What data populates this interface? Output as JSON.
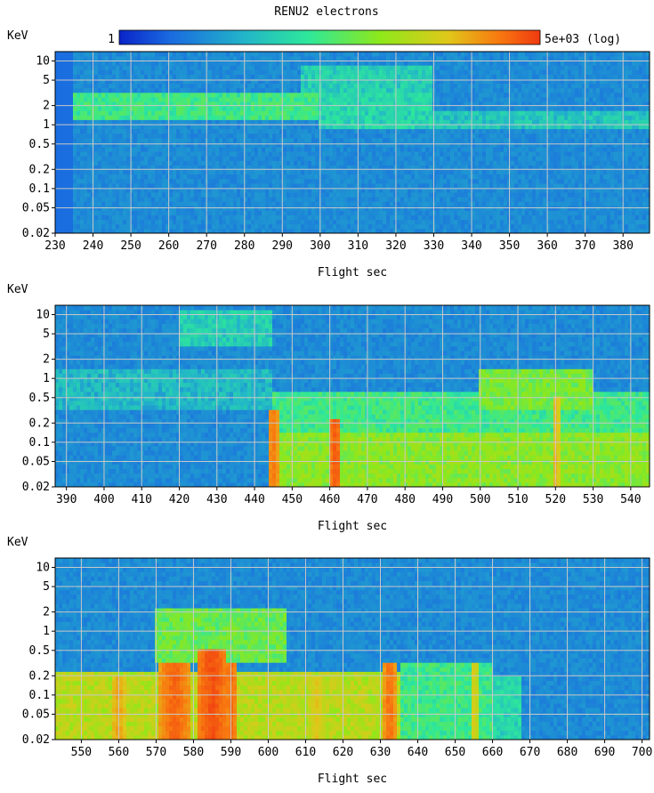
{
  "title": "RENU2 electrons",
  "colorbar": {
    "min_label": "1",
    "max_label": "5e+03 (log)",
    "min": 1,
    "max": 5000,
    "scale": "log",
    "colormap": "jet"
  },
  "chart_data": [
    {
      "type": "heatmap",
      "title": "RENU2 electrons",
      "xlabel": "Flight sec",
      "ylabel": "KeV",
      "xlim": [
        230,
        387
      ],
      "ylim": [
        0.02,
        14
      ],
      "yscale": "log",
      "grid": true,
      "x_ticks": [
        230,
        240,
        250,
        260,
        270,
        280,
        290,
        300,
        310,
        320,
        330,
        340,
        350,
        360,
        370,
        380
      ],
      "y_ticks": [
        0.02,
        0.05,
        0.1,
        0.2,
        0.5,
        1,
        2,
        5,
        10
      ],
      "y_tick_labels": [
        "0.02",
        "0.05",
        "0.1",
        "0.2",
        "0.5",
        "1",
        "2",
        "5",
        "10"
      ],
      "data_start": 235,
      "bands": [
        {
          "x": [
            235,
            300
          ],
          "e": [
            1.2,
            3
          ],
          "value": 60
        },
        {
          "x": [
            300,
            330
          ],
          "e": [
            0.9,
            3
          ],
          "value": 30
        },
        {
          "x": [
            330,
            387
          ],
          "e": [
            0.8,
            1.6
          ],
          "value": 20
        },
        {
          "x": [
            295,
            330
          ],
          "e": [
            2,
            8
          ],
          "value": 25
        }
      ],
      "spikes": []
    },
    {
      "type": "heatmap",
      "title": "",
      "xlabel": "Flight sec",
      "ylabel": "KeV",
      "xlim": [
        387,
        545
      ],
      "ylim": [
        0.02,
        14
      ],
      "yscale": "log",
      "grid": true,
      "x_ticks": [
        390,
        400,
        410,
        420,
        430,
        440,
        450,
        460,
        470,
        480,
        490,
        500,
        510,
        520,
        530,
        540
      ],
      "y_ticks": [
        0.02,
        0.05,
        0.1,
        0.2,
        0.5,
        1,
        2,
        5,
        10
      ],
      "y_tick_labels": [
        "0.02",
        "0.05",
        "0.1",
        "0.2",
        "0.5",
        "1",
        "2",
        "5",
        "10"
      ],
      "data_start": 387,
      "bands": [
        {
          "x": [
            387,
            445
          ],
          "e": [
            0.3,
            1.5
          ],
          "value": 15
        },
        {
          "x": [
            420,
            445
          ],
          "e": [
            3,
            12
          ],
          "value": 25
        },
        {
          "x": [
            445,
            545
          ],
          "e": [
            0.02,
            0.15
          ],
          "value": 200
        },
        {
          "x": [
            445,
            545
          ],
          "e": [
            0.15,
            0.6
          ],
          "value": 60
        },
        {
          "x": [
            500,
            530
          ],
          "e": [
            0.3,
            1.5
          ],
          "value": 150
        }
      ],
      "spikes": [
        {
          "x": 445,
          "w": 1.5,
          "e_top": 0.3,
          "value": 2500
        },
        {
          "x": 461.5,
          "w": 1.5,
          "e_top": 0.25,
          "value": 4000
        },
        {
          "x": 520,
          "w": 1,
          "e_top": 0.5,
          "value": 1200
        }
      ]
    },
    {
      "type": "heatmap",
      "title": "",
      "xlabel": "Flight sec",
      "ylabel": "KeV",
      "xlim": [
        543,
        702
      ],
      "ylim": [
        0.02,
        14
      ],
      "yscale": "log",
      "grid": true,
      "x_ticks": [
        550,
        560,
        570,
        580,
        590,
        600,
        610,
        620,
        630,
        640,
        650,
        660,
        670,
        680,
        690,
        700
      ],
      "y_ticks": [
        0.02,
        0.05,
        0.1,
        0.2,
        0.5,
        1,
        2,
        5,
        10
      ],
      "y_tick_labels": [
        "0.02",
        "0.05",
        "0.1",
        "0.2",
        "0.5",
        "1",
        "2",
        "5",
        "10"
      ],
      "data_start": 543,
      "bands": [
        {
          "x": [
            543,
            635
          ],
          "e": [
            0.02,
            0.25
          ],
          "value": 400
        },
        {
          "x": [
            570,
            605
          ],
          "e": [
            0.3,
            2.2
          ],
          "value": 120
        },
        {
          "x": [
            635,
            660
          ],
          "e": [
            0.02,
            0.3
          ],
          "value": 60
        },
        {
          "x": [
            660,
            668
          ],
          "e": [
            0.02,
            0.2
          ],
          "value": 30
        }
      ],
      "spikes": [
        {
          "x": 575,
          "w": 4,
          "e_top": 0.3,
          "value": 3500
        },
        {
          "x": 585,
          "w": 4,
          "e_top": 0.5,
          "value": 4500
        },
        {
          "x": 590,
          "w": 2,
          "e_top": 0.3,
          "value": 3000
        },
        {
          "x": 560,
          "w": 2,
          "e_top": 0.2,
          "value": 1500
        },
        {
          "x": 632.5,
          "w": 1.5,
          "e_top": 0.3,
          "value": 3000
        },
        {
          "x": 613,
          "w": 2,
          "e_top": 0.2,
          "value": 900
        },
        {
          "x": 655,
          "w": 1,
          "e_top": 0.3,
          "value": 800
        }
      ]
    }
  ]
}
